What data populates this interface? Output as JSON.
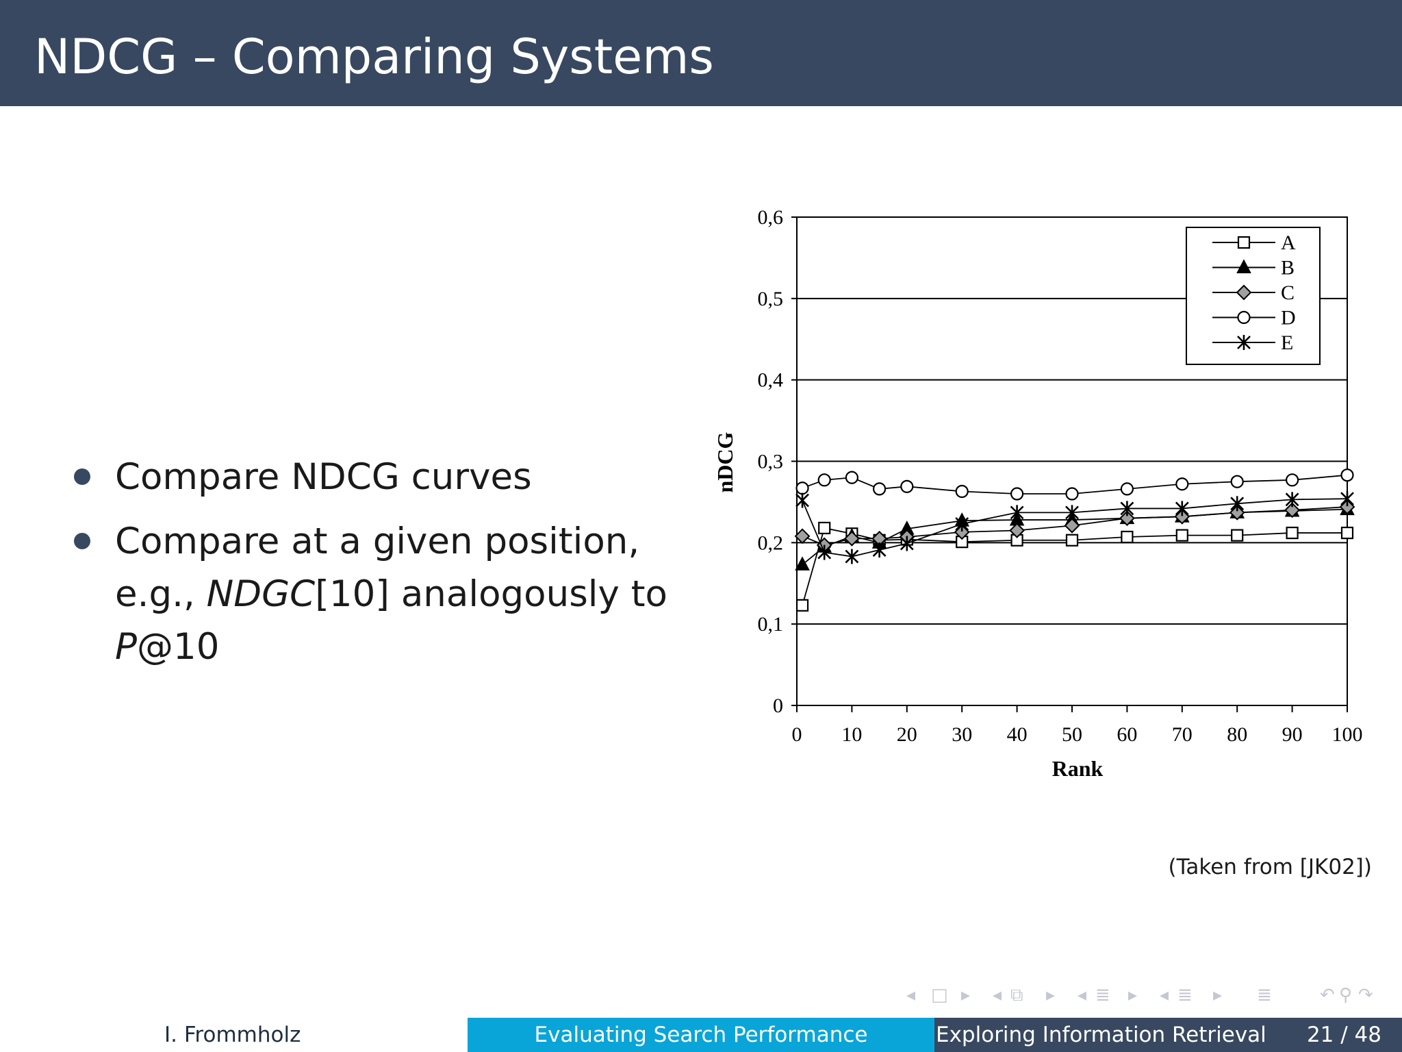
{
  "slide": {
    "title": "NDCG – Comparing Systems",
    "bullets": [
      {
        "text": "Compare NDCG curves"
      },
      {
        "text_before": "Compare at a given position,",
        "text_mid": "e.g., ",
        "italic1": "NDGC",
        "text_after": "[10] analogously to",
        "italic2": "P",
        "text_end": "@10"
      }
    ],
    "source_note": "(Taken from [JK02])"
  },
  "navigation": {
    "icons": [
      "arrow-left-icon",
      "frame-icon",
      "arrow-right-icon",
      "arrow-left-icon",
      "subsection-icon",
      "arrow-right-icon",
      "arrow-left-icon",
      "section-icon",
      "arrow-right-icon",
      "arrow-left-icon",
      "section-icon",
      "arrow-right-icon",
      "align-icon",
      "undo-icon",
      "search-icon",
      "redo-icon"
    ],
    "glyphs": [
      "◂",
      "□",
      "▸",
      "◂",
      "⧉",
      "▸",
      "◂",
      "≣",
      "▸",
      "◂",
      "≣",
      "▸",
      "≣",
      "↶",
      "⚲",
      "↷"
    ]
  },
  "footer": {
    "author": "I. Frommholz",
    "section": "Evaluating Search Performance",
    "course": "Exploring Information Retrieval",
    "page": "21 / 48"
  },
  "chart_data": {
    "type": "line",
    "xlabel": "Rank",
    "ylabel": "nDCG",
    "xlim": [
      0,
      100
    ],
    "ylim": [
      0,
      0.6
    ],
    "xticks": [
      "0",
      "10",
      "20",
      "30",
      "40",
      "50",
      "60",
      "70",
      "80",
      "90",
      "100"
    ],
    "yticks": [
      "0",
      "0,1",
      "0,2",
      "0,3",
      "0,4",
      "0,5",
      "0,6"
    ],
    "grid": "horizontal",
    "legend_position": "top-right",
    "x": [
      1,
      5,
      10,
      15,
      20,
      30,
      40,
      50,
      60,
      70,
      80,
      90,
      100
    ],
    "series": [
      {
        "name": "A",
        "marker": "square-open",
        "values": [
          0.123,
          0.218,
          0.211,
          0.203,
          0.204,
          0.201,
          0.203,
          0.203,
          0.207,
          0.209,
          0.209,
          0.212,
          0.212
        ]
      },
      {
        "name": "B",
        "marker": "triangle-filled",
        "values": [
          0.173,
          0.195,
          0.208,
          0.2,
          0.217,
          0.227,
          0.228,
          0.228,
          0.23,
          0.232,
          0.237,
          0.239,
          0.241
        ]
      },
      {
        "name": "C",
        "marker": "diamond-gray",
        "values": [
          0.208,
          0.197,
          0.205,
          0.205,
          0.207,
          0.213,
          0.215,
          0.221,
          0.23,
          0.232,
          0.237,
          0.24,
          0.244
        ]
      },
      {
        "name": "D",
        "marker": "circle-open",
        "values": [
          0.267,
          0.277,
          0.28,
          0.266,
          0.269,
          0.263,
          0.26,
          0.26,
          0.266,
          0.272,
          0.275,
          0.277,
          0.283
        ]
      },
      {
        "name": "E",
        "marker": "asterisk",
        "values": [
          0.252,
          0.188,
          0.183,
          0.191,
          0.199,
          0.223,
          0.237,
          0.237,
          0.242,
          0.242,
          0.248,
          0.253,
          0.254
        ]
      }
    ]
  }
}
